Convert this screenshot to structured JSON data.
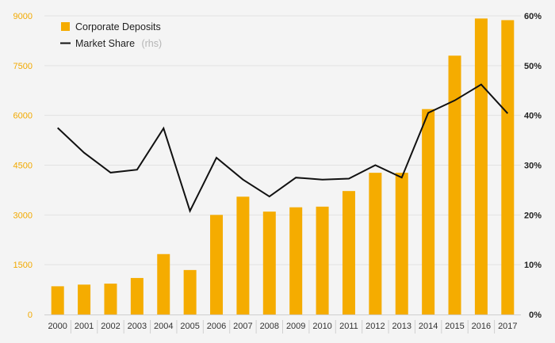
{
  "chart_data": {
    "type": "bar",
    "categories": [
      "2000",
      "2001",
      "2002",
      "2003",
      "2004",
      "2005",
      "2006",
      "2007",
      "2008",
      "2009",
      "2010",
      "2011",
      "2012",
      "2013",
      "2014",
      "2015",
      "2016",
      "2017"
    ],
    "series": [
      {
        "name": "Corporate Deposits",
        "type": "bar",
        "axis": "left",
        "values": [
          850,
          900,
          930,
          1100,
          1820,
          1340,
          3000,
          3550,
          3100,
          3230,
          3250,
          3720,
          4270,
          4270,
          6190,
          7800,
          8920,
          8870
        ]
      },
      {
        "name": "Market Share",
        "name_suffix": "(rhs)",
        "type": "line",
        "axis": "right",
        "values": [
          37.5,
          32.5,
          28.5,
          29.1,
          37.4,
          20.8,
          31.5,
          27.1,
          23.7,
          27.5,
          27.1,
          27.3,
          30.0,
          27.5,
          40.5,
          43.0,
          46.2,
          40.4
        ]
      }
    ],
    "y_left": {
      "ylim": [
        0,
        9000
      ],
      "ticks": [
        "0",
        "1500",
        "3000",
        "4500",
        "6000",
        "7500",
        "9000"
      ]
    },
    "y_right": {
      "ylim": [
        0,
        60
      ],
      "ticks": [
        "0%",
        "10%",
        "20%",
        "30%",
        "40%",
        "50%",
        "60%"
      ]
    },
    "title": "",
    "xlabel": "",
    "ylabel": "",
    "grid": true,
    "legend_position": "top-left",
    "colors": {
      "bar": "#f5ac00",
      "line": "#111111",
      "left_tick": "#f2a900",
      "right_tick": "#222222",
      "grid": "#e2e2e2",
      "background": "#f4f4f4"
    }
  }
}
